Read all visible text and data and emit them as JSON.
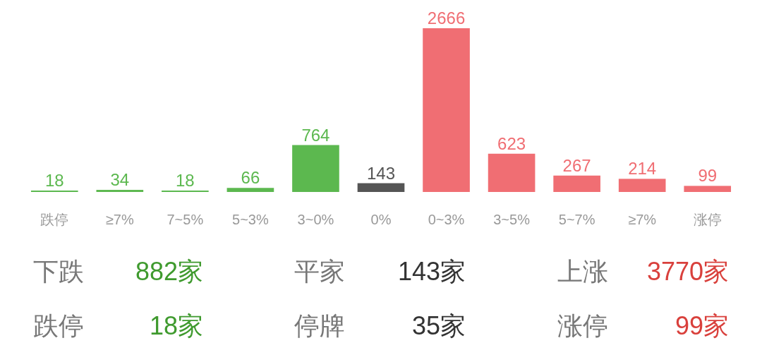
{
  "chart_data": [
    {
      "type": "bar",
      "categories": [
        "跌停",
        "≥7%",
        "7~5%",
        "5~3%",
        "3~0%",
        "0%",
        "0~3%",
        "3~5%",
        "5~7%",
        "≥7%",
        "涨停"
      ],
      "values": [
        18,
        34,
        18,
        66,
        764,
        143,
        2666,
        623,
        267,
        214,
        99
      ],
      "colors": [
        "#5cb84f",
        "#5cb84f",
        "#5cb84f",
        "#5cb84f",
        "#5cb84f",
        "#555555",
        "#f06e73",
        "#f06e73",
        "#f06e73",
        "#f06e73",
        "#f06e73"
      ],
      "data_labels": true
    },
    {
      "type": "other",
      "annotations": [
        "下跌",
        "882家",
        "平家",
        "143家",
        "上涨",
        "3770家",
        "跌停",
        "18家",
        "停牌",
        "35家",
        "涨停",
        "99家"
      ]
    }
  ]
}
